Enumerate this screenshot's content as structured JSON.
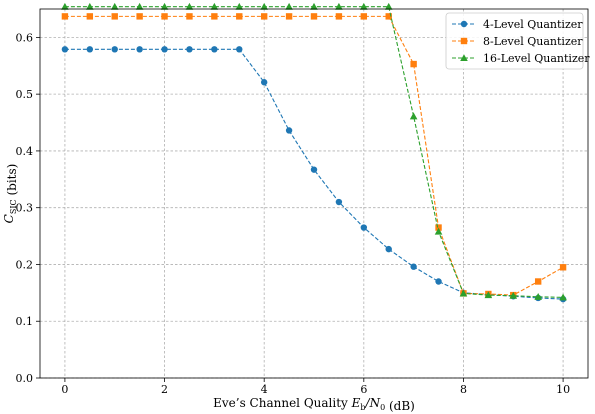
{
  "chart_data": {
    "type": "line",
    "xlabel": "Eve’s Channel Quality E_b/N_0 (dB)",
    "ylabel": "C_SIC (bits)",
    "xlim": [
      -0.5,
      10.5
    ],
    "ylim": [
      0.0,
      0.65
    ],
    "xticks": [
      0,
      2,
      4,
      6,
      8,
      10
    ],
    "yticks": [
      0.0,
      0.1,
      0.2,
      0.3,
      0.4,
      0.5,
      0.6
    ],
    "xtick_labels": [
      "0",
      "2",
      "4",
      "6",
      "8",
      "10"
    ],
    "ytick_labels": [
      "0.0",
      "0.1",
      "0.2",
      "0.3",
      "0.4",
      "0.5",
      "0.6"
    ],
    "grid": true,
    "legend_position": "top-right",
    "x": [
      0,
      0.5,
      1,
      1.5,
      2,
      2.5,
      3,
      3.5,
      4,
      4.5,
      5,
      5.5,
      6,
      6.5,
      7,
      7.5,
      8,
      8.5,
      9,
      9.5,
      10
    ],
    "series": [
      {
        "name": "4-Level Quantizer",
        "color": "#1f77b4",
        "marker": "circle",
        "values": [
          0.579,
          0.579,
          0.579,
          0.579,
          0.579,
          0.579,
          0.579,
          0.579,
          0.521,
          0.436,
          0.367,
          0.31,
          0.265,
          0.227,
          0.196,
          0.17,
          0.15,
          0.147,
          0.144,
          0.141,
          0.139
        ]
      },
      {
        "name": "8-Level Quantizer",
        "color": "#ff7f0e",
        "marker": "square",
        "values": [
          0.637,
          0.637,
          0.637,
          0.637,
          0.637,
          0.637,
          0.637,
          0.637,
          0.637,
          0.637,
          0.637,
          0.637,
          0.637,
          0.637,
          0.553,
          0.265,
          0.149,
          0.148,
          0.146,
          0.17,
          0.195
        ]
      },
      {
        "name": "16-Level Quantizer",
        "color": "#2ca02c",
        "marker": "triangle",
        "values": [
          0.654,
          0.654,
          0.654,
          0.654,
          0.654,
          0.654,
          0.654,
          0.654,
          0.654,
          0.654,
          0.654,
          0.654,
          0.654,
          0.654,
          0.461,
          0.258,
          0.149,
          0.146,
          0.145,
          0.143,
          0.142
        ]
      }
    ]
  }
}
